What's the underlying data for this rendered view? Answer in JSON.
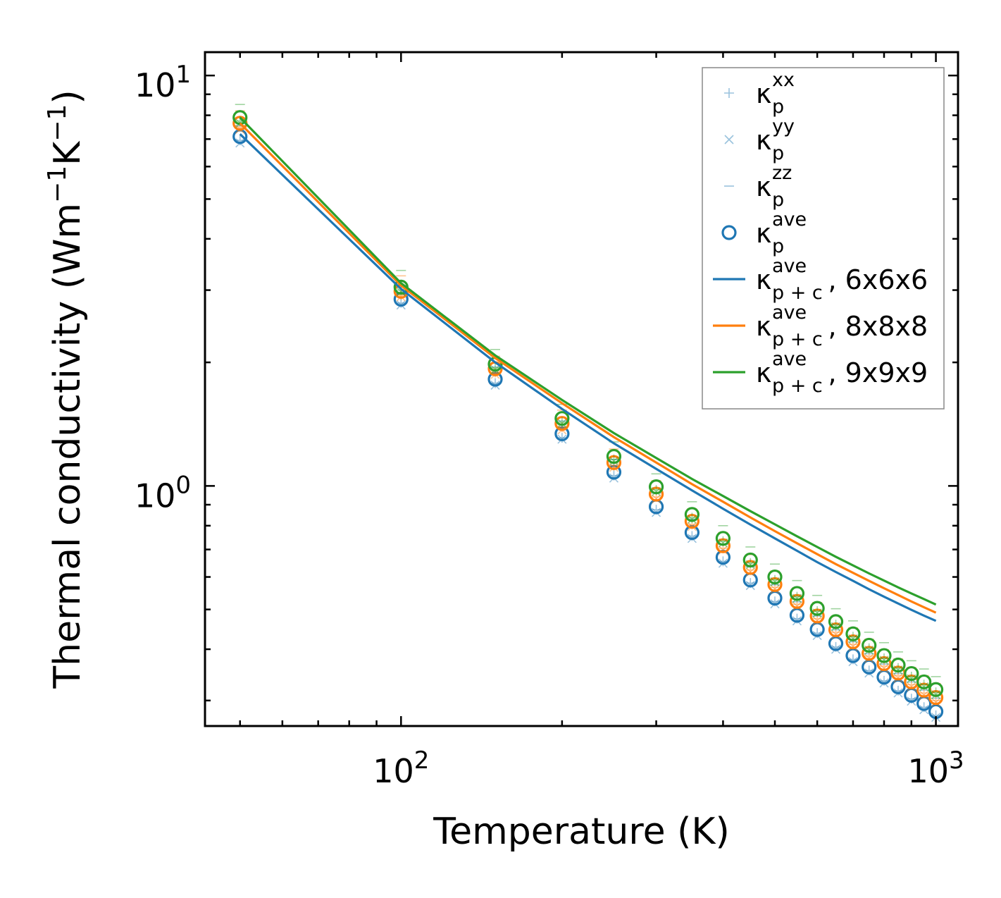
{
  "chart_data": {
    "type": "scatter",
    "title": "",
    "xlabel": "Temperature (K)",
    "ylabel": "Thermal conductivity (Wm",
    "ylabel_units": [
      "−1",
      "K",
      "−1",
      ")"
    ],
    "xscale": "log",
    "yscale": "log",
    "xlim": [
      43,
      1100
    ],
    "ylim": [
      0.26,
      11.4
    ],
    "x_major_ticks": [
      {
        "value": 100,
        "base": "10",
        "exp": "2"
      },
      {
        "value": 1000,
        "base": "10",
        "exp": "3"
      }
    ],
    "y_major_ticks": [
      {
        "value": 1,
        "base": "10",
        "exp": "0"
      },
      {
        "value": 10,
        "base": "10",
        "exp": "1"
      }
    ],
    "legend_position": "top-right",
    "temperatures": [
      50,
      100,
      150,
      200,
      250,
      300,
      350,
      400,
      450,
      500,
      550,
      600,
      650,
      700,
      750,
      800,
      850,
      900,
      950,
      1000
    ],
    "series": [
      {
        "name": "6x6x6",
        "color": "#1f77b4",
        "kappa_ave": [
          7.1,
          2.85,
          1.82,
          1.34,
          1.08,
          0.89,
          0.77,
          0.67,
          0.59,
          0.533,
          0.484,
          0.447,
          0.413,
          0.386,
          0.362,
          0.342,
          0.324,
          0.309,
          0.295,
          0.282
        ],
        "kappa_xx": [
          6.95,
          2.79,
          1.78,
          1.31,
          1.06,
          0.875,
          0.755,
          0.655,
          0.58,
          0.523,
          0.475,
          0.438,
          0.405,
          0.378,
          0.355,
          0.335,
          0.317,
          0.303,
          0.289,
          0.276
        ],
        "kappa_yy": [
          6.85,
          2.76,
          1.76,
          1.3,
          1.045,
          0.862,
          0.745,
          0.648,
          0.572,
          0.516,
          0.469,
          0.432,
          0.4,
          0.373,
          0.35,
          0.331,
          0.313,
          0.299,
          0.285,
          0.273
        ],
        "kappa_zz": [
          7.55,
          3.05,
          1.95,
          1.44,
          1.16,
          0.96,
          0.83,
          0.72,
          0.635,
          0.574,
          0.522,
          0.482,
          0.446,
          0.417,
          0.39,
          0.368,
          0.349,
          0.333,
          0.318,
          0.304
        ],
        "kappa_p_c": [
          7.2,
          3.02,
          2.0,
          1.54,
          1.27,
          1.1,
          0.975,
          0.88,
          0.805,
          0.745,
          0.695,
          0.652,
          0.617,
          0.587,
          0.56,
          0.537,
          0.517,
          0.499,
          0.483,
          0.469
        ]
      },
      {
        "name": "8x8x8",
        "color": "#ff7f0e",
        "kappa_ave": [
          7.65,
          2.98,
          1.93,
          1.42,
          1.14,
          0.955,
          0.82,
          0.715,
          0.633,
          0.575,
          0.523,
          0.482,
          0.446,
          0.417,
          0.391,
          0.369,
          0.35,
          0.333,
          0.318,
          0.305
        ],
        "kappa_xx": [
          7.5,
          2.92,
          1.89,
          1.39,
          1.12,
          0.94,
          0.805,
          0.705,
          0.624,
          0.566,
          0.515,
          0.475,
          0.44,
          0.411,
          0.385,
          0.364,
          0.345,
          0.328,
          0.313,
          0.3
        ],
        "kappa_yy": [
          7.4,
          2.89,
          1.87,
          1.37,
          1.11,
          0.93,
          0.797,
          0.698,
          0.617,
          0.56,
          0.509,
          0.469,
          0.434,
          0.406,
          0.38,
          0.359,
          0.34,
          0.324,
          0.309,
          0.297
        ],
        "kappa_zz": [
          8.2,
          3.25,
          2.07,
          1.53,
          1.23,
          1.03,
          0.88,
          0.77,
          0.68,
          0.62,
          0.565,
          0.52,
          0.482,
          0.451,
          0.423,
          0.399,
          0.379,
          0.361,
          0.345,
          0.33
        ],
        "kappa_p_c": [
          7.65,
          3.08,
          2.05,
          1.59,
          1.315,
          1.14,
          1.01,
          0.915,
          0.838,
          0.776,
          0.725,
          0.682,
          0.645,
          0.614,
          0.587,
          0.563,
          0.542,
          0.523,
          0.506,
          0.491
        ]
      },
      {
        "name": "9x9x9",
        "color": "#2ca02c",
        "kappa_ave": [
          7.9,
          3.05,
          1.98,
          1.46,
          1.18,
          0.995,
          0.852,
          0.745,
          0.66,
          0.6,
          0.547,
          0.503,
          0.467,
          0.436,
          0.409,
          0.386,
          0.366,
          0.349,
          0.333,
          0.319
        ],
        "kappa_xx": [
          7.75,
          3.0,
          1.94,
          1.43,
          1.16,
          0.978,
          0.837,
          0.733,
          0.649,
          0.59,
          0.537,
          0.495,
          0.459,
          0.429,
          0.402,
          0.38,
          0.36,
          0.343,
          0.328,
          0.314
        ],
        "kappa_yy": [
          7.65,
          2.97,
          1.92,
          1.42,
          1.15,
          0.968,
          0.829,
          0.726,
          0.643,
          0.584,
          0.532,
          0.49,
          0.454,
          0.424,
          0.398,
          0.376,
          0.356,
          0.339,
          0.324,
          0.31
        ],
        "kappa_zz": [
          8.5,
          3.35,
          2.15,
          1.58,
          1.28,
          1.07,
          0.915,
          0.8,
          0.71,
          0.645,
          0.588,
          0.541,
          0.502,
          0.469,
          0.44,
          0.415,
          0.394,
          0.375,
          0.358,
          0.343
        ],
        "kappa_p_c": [
          7.9,
          3.12,
          2.08,
          1.62,
          1.345,
          1.17,
          1.04,
          0.945,
          0.868,
          0.806,
          0.754,
          0.71,
          0.672,
          0.64,
          0.612,
          0.588,
          0.566,
          0.547,
          0.53,
          0.514
        ]
      }
    ],
    "legend": [
      {
        "marker": "plus",
        "label": "κ",
        "sub": "p",
        "sup": "xx",
        "suffix": "",
        "color": "#1f77b4"
      },
      {
        "marker": "x",
        "label": "κ",
        "sub": "p",
        "sup": "yy",
        "suffix": "",
        "color": "#1f77b4"
      },
      {
        "marker": "hline",
        "label": "κ",
        "sub": "p",
        "sup": "zz",
        "suffix": "",
        "color": "#1f77b4"
      },
      {
        "marker": "circle",
        "label": "κ",
        "sub": "p",
        "sup": "ave",
        "suffix": "",
        "color": "#1f77b4"
      },
      {
        "marker": "line",
        "label": "κ",
        "sub": "p + c",
        "sup": "ave",
        "suffix": ", 6x6x6",
        "color": "#1f77b4"
      },
      {
        "marker": "line",
        "label": "κ",
        "sub": "p + c",
        "sup": "ave",
        "suffix": ", 8x8x8",
        "color": "#ff7f0e"
      },
      {
        "marker": "line",
        "label": "κ",
        "sub": "p + c",
        "sup": "ave",
        "suffix": ", 9x9x9",
        "color": "#2ca02c"
      }
    ]
  }
}
